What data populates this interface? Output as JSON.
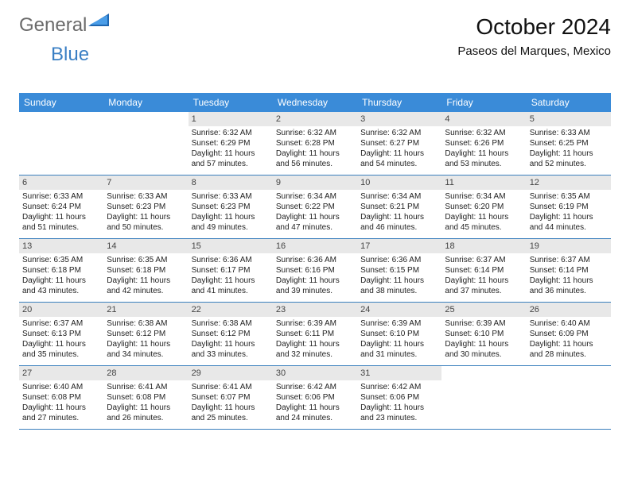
{
  "logo": {
    "text1": "General",
    "text2": "Blue"
  },
  "header": {
    "month_title": "October 2024",
    "location": "Paseos del Marques, Mexico"
  },
  "colors": {
    "header_bg": "#3a8bd8",
    "header_text": "#ffffff",
    "daynum_bg": "#e8e8e8",
    "week_border": "#3a7fbd",
    "logo_gray": "#6a6a6a",
    "logo_blue": "#3a7fc4"
  },
  "weekdays": [
    "Sunday",
    "Monday",
    "Tuesday",
    "Wednesday",
    "Thursday",
    "Friday",
    "Saturday"
  ],
  "weeks": [
    [
      null,
      null,
      {
        "n": "1",
        "sunrise": "Sunrise: 6:32 AM",
        "sunset": "Sunset: 6:29 PM",
        "daylight": "Daylight: 11 hours and 57 minutes."
      },
      {
        "n": "2",
        "sunrise": "Sunrise: 6:32 AM",
        "sunset": "Sunset: 6:28 PM",
        "daylight": "Daylight: 11 hours and 56 minutes."
      },
      {
        "n": "3",
        "sunrise": "Sunrise: 6:32 AM",
        "sunset": "Sunset: 6:27 PM",
        "daylight": "Daylight: 11 hours and 54 minutes."
      },
      {
        "n": "4",
        "sunrise": "Sunrise: 6:32 AM",
        "sunset": "Sunset: 6:26 PM",
        "daylight": "Daylight: 11 hours and 53 minutes."
      },
      {
        "n": "5",
        "sunrise": "Sunrise: 6:33 AM",
        "sunset": "Sunset: 6:25 PM",
        "daylight": "Daylight: 11 hours and 52 minutes."
      }
    ],
    [
      {
        "n": "6",
        "sunrise": "Sunrise: 6:33 AM",
        "sunset": "Sunset: 6:24 PM",
        "daylight": "Daylight: 11 hours and 51 minutes."
      },
      {
        "n": "7",
        "sunrise": "Sunrise: 6:33 AM",
        "sunset": "Sunset: 6:23 PM",
        "daylight": "Daylight: 11 hours and 50 minutes."
      },
      {
        "n": "8",
        "sunrise": "Sunrise: 6:33 AM",
        "sunset": "Sunset: 6:23 PM",
        "daylight": "Daylight: 11 hours and 49 minutes."
      },
      {
        "n": "9",
        "sunrise": "Sunrise: 6:34 AM",
        "sunset": "Sunset: 6:22 PM",
        "daylight": "Daylight: 11 hours and 47 minutes."
      },
      {
        "n": "10",
        "sunrise": "Sunrise: 6:34 AM",
        "sunset": "Sunset: 6:21 PM",
        "daylight": "Daylight: 11 hours and 46 minutes."
      },
      {
        "n": "11",
        "sunrise": "Sunrise: 6:34 AM",
        "sunset": "Sunset: 6:20 PM",
        "daylight": "Daylight: 11 hours and 45 minutes."
      },
      {
        "n": "12",
        "sunrise": "Sunrise: 6:35 AM",
        "sunset": "Sunset: 6:19 PM",
        "daylight": "Daylight: 11 hours and 44 minutes."
      }
    ],
    [
      {
        "n": "13",
        "sunrise": "Sunrise: 6:35 AM",
        "sunset": "Sunset: 6:18 PM",
        "daylight": "Daylight: 11 hours and 43 minutes."
      },
      {
        "n": "14",
        "sunrise": "Sunrise: 6:35 AM",
        "sunset": "Sunset: 6:18 PM",
        "daylight": "Daylight: 11 hours and 42 minutes."
      },
      {
        "n": "15",
        "sunrise": "Sunrise: 6:36 AM",
        "sunset": "Sunset: 6:17 PM",
        "daylight": "Daylight: 11 hours and 41 minutes."
      },
      {
        "n": "16",
        "sunrise": "Sunrise: 6:36 AM",
        "sunset": "Sunset: 6:16 PM",
        "daylight": "Daylight: 11 hours and 39 minutes."
      },
      {
        "n": "17",
        "sunrise": "Sunrise: 6:36 AM",
        "sunset": "Sunset: 6:15 PM",
        "daylight": "Daylight: 11 hours and 38 minutes."
      },
      {
        "n": "18",
        "sunrise": "Sunrise: 6:37 AM",
        "sunset": "Sunset: 6:14 PM",
        "daylight": "Daylight: 11 hours and 37 minutes."
      },
      {
        "n": "19",
        "sunrise": "Sunrise: 6:37 AM",
        "sunset": "Sunset: 6:14 PM",
        "daylight": "Daylight: 11 hours and 36 minutes."
      }
    ],
    [
      {
        "n": "20",
        "sunrise": "Sunrise: 6:37 AM",
        "sunset": "Sunset: 6:13 PM",
        "daylight": "Daylight: 11 hours and 35 minutes."
      },
      {
        "n": "21",
        "sunrise": "Sunrise: 6:38 AM",
        "sunset": "Sunset: 6:12 PM",
        "daylight": "Daylight: 11 hours and 34 minutes."
      },
      {
        "n": "22",
        "sunrise": "Sunrise: 6:38 AM",
        "sunset": "Sunset: 6:12 PM",
        "daylight": "Daylight: 11 hours and 33 minutes."
      },
      {
        "n": "23",
        "sunrise": "Sunrise: 6:39 AM",
        "sunset": "Sunset: 6:11 PM",
        "daylight": "Daylight: 11 hours and 32 minutes."
      },
      {
        "n": "24",
        "sunrise": "Sunrise: 6:39 AM",
        "sunset": "Sunset: 6:10 PM",
        "daylight": "Daylight: 11 hours and 31 minutes."
      },
      {
        "n": "25",
        "sunrise": "Sunrise: 6:39 AM",
        "sunset": "Sunset: 6:10 PM",
        "daylight": "Daylight: 11 hours and 30 minutes."
      },
      {
        "n": "26",
        "sunrise": "Sunrise: 6:40 AM",
        "sunset": "Sunset: 6:09 PM",
        "daylight": "Daylight: 11 hours and 28 minutes."
      }
    ],
    [
      {
        "n": "27",
        "sunrise": "Sunrise: 6:40 AM",
        "sunset": "Sunset: 6:08 PM",
        "daylight": "Daylight: 11 hours and 27 minutes."
      },
      {
        "n": "28",
        "sunrise": "Sunrise: 6:41 AM",
        "sunset": "Sunset: 6:08 PM",
        "daylight": "Daylight: 11 hours and 26 minutes."
      },
      {
        "n": "29",
        "sunrise": "Sunrise: 6:41 AM",
        "sunset": "Sunset: 6:07 PM",
        "daylight": "Daylight: 11 hours and 25 minutes."
      },
      {
        "n": "30",
        "sunrise": "Sunrise: 6:42 AM",
        "sunset": "Sunset: 6:06 PM",
        "daylight": "Daylight: 11 hours and 24 minutes."
      },
      {
        "n": "31",
        "sunrise": "Sunrise: 6:42 AM",
        "sunset": "Sunset: 6:06 PM",
        "daylight": "Daylight: 11 hours and 23 minutes."
      },
      null,
      null
    ]
  ]
}
